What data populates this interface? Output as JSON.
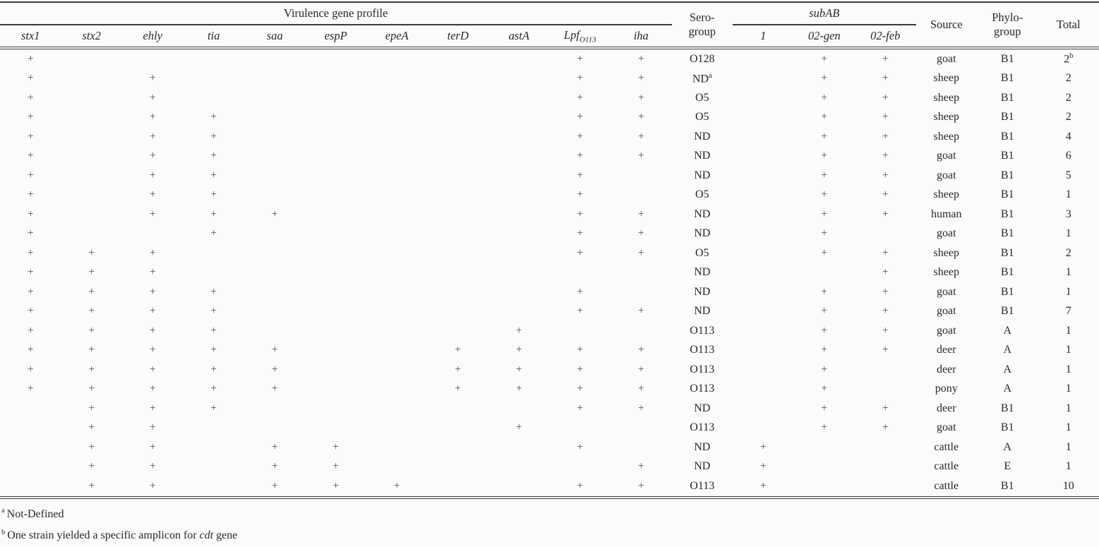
{
  "table": {
    "header": {
      "virulence_group": "Virulence gene profile",
      "serogroup_line1": "Sero-",
      "serogroup_line2": "group",
      "subAB": "subAB",
      "source": "Source",
      "phylo_line1": "Phylo-",
      "phylo_line2": "group",
      "total": "Total",
      "gene_columns": [
        {
          "label": "stx1",
          "sub": ""
        },
        {
          "label": "stx2",
          "sub": ""
        },
        {
          "label": "ehly",
          "sub": ""
        },
        {
          "label": "tia",
          "sub": ""
        },
        {
          "label": "saa",
          "sub": ""
        },
        {
          "label": "espP",
          "sub": ""
        },
        {
          "label": "epeA",
          "sub": ""
        },
        {
          "label": "terD",
          "sub": ""
        },
        {
          "label": "astA",
          "sub": ""
        },
        {
          "label": "Lpf",
          "sub": "O113"
        },
        {
          "label": "iha",
          "sub": ""
        }
      ],
      "subAB_columns": [
        "1",
        "02-gen",
        "02-feb"
      ]
    },
    "rows": [
      {
        "genes": [
          "+",
          "",
          "",
          "",
          "",
          "",
          "",
          "",
          "",
          "+",
          "+"
        ],
        "sero": "O128",
        "sero_sup": "",
        "subAB": [
          "",
          "+",
          "+"
        ],
        "source": "goat",
        "phylo": "B1",
        "total": "2",
        "total_sup": "b"
      },
      {
        "genes": [
          "+",
          "",
          "+",
          "",
          "",
          "",
          "",
          "",
          "",
          "+",
          "+"
        ],
        "sero": "ND",
        "sero_sup": "a",
        "subAB": [
          "",
          "+",
          "+"
        ],
        "source": "sheep",
        "phylo": "B1",
        "total": "2",
        "total_sup": ""
      },
      {
        "genes": [
          "+",
          "",
          "+",
          "",
          "",
          "",
          "",
          "",
          "",
          "+",
          "+"
        ],
        "sero": "O5",
        "sero_sup": "",
        "subAB": [
          "",
          "+",
          "+"
        ],
        "source": "sheep",
        "phylo": "B1",
        "total": "2",
        "total_sup": ""
      },
      {
        "genes": [
          "+",
          "",
          "+",
          "+",
          "",
          "",
          "",
          "",
          "",
          "+",
          "+"
        ],
        "sero": "O5",
        "sero_sup": "",
        "subAB": [
          "",
          "+",
          "+"
        ],
        "source": "sheep",
        "phylo": "B1",
        "total": "2",
        "total_sup": ""
      },
      {
        "genes": [
          "+",
          "",
          "+",
          "+",
          "",
          "",
          "",
          "",
          "",
          "+",
          "+"
        ],
        "sero": "ND",
        "sero_sup": "",
        "subAB": [
          "",
          "+",
          "+"
        ],
        "source": "sheep",
        "phylo": "B1",
        "total": "4",
        "total_sup": ""
      },
      {
        "genes": [
          "+",
          "",
          "+",
          "+",
          "",
          "",
          "",
          "",
          "",
          "+",
          "+"
        ],
        "sero": "ND",
        "sero_sup": "",
        "subAB": [
          "",
          "+",
          "+"
        ],
        "source": "goat",
        "phylo": "B1",
        "total": "6",
        "total_sup": ""
      },
      {
        "genes": [
          "+",
          "",
          "+",
          "+",
          "",
          "",
          "",
          "",
          "",
          "+",
          ""
        ],
        "sero": "ND",
        "sero_sup": "",
        "subAB": [
          "",
          "+",
          "+"
        ],
        "source": "goat",
        "phylo": "B1",
        "total": "5",
        "total_sup": ""
      },
      {
        "genes": [
          "+",
          "",
          "+",
          "+",
          "",
          "",
          "",
          "",
          "",
          "+",
          ""
        ],
        "sero": "O5",
        "sero_sup": "",
        "subAB": [
          "",
          "+",
          "+"
        ],
        "source": "sheep",
        "phylo": "B1",
        "total": "1",
        "total_sup": ""
      },
      {
        "genes": [
          "+",
          "",
          "+",
          "+",
          "+",
          "",
          "",
          "",
          "",
          "+",
          "+"
        ],
        "sero": "ND",
        "sero_sup": "",
        "subAB": [
          "",
          "+",
          "+"
        ],
        "source": "human",
        "phylo": "B1",
        "total": "3",
        "total_sup": ""
      },
      {
        "genes": [
          "+",
          "",
          "",
          "+",
          "",
          "",
          "",
          "",
          "",
          "+",
          "+"
        ],
        "sero": "ND",
        "sero_sup": "",
        "subAB": [
          "",
          "+",
          ""
        ],
        "source": "goat",
        "phylo": "B1",
        "total": "1",
        "total_sup": ""
      },
      {
        "genes": [
          "+",
          "+",
          "+",
          "",
          "",
          "",
          "",
          "",
          "",
          "+",
          "+"
        ],
        "sero": "O5",
        "sero_sup": "",
        "subAB": [
          "",
          "+",
          "+"
        ],
        "source": "sheep",
        "phylo": "B1",
        "total": "2",
        "total_sup": ""
      },
      {
        "genes": [
          "+",
          "+",
          "+",
          "",
          "",
          "",
          "",
          "",
          "",
          "",
          ""
        ],
        "sero": "ND",
        "sero_sup": "",
        "subAB": [
          "",
          "",
          "+"
        ],
        "source": "sheep",
        "phylo": "B1",
        "total": "1",
        "total_sup": ""
      },
      {
        "genes": [
          "+",
          "+",
          "+",
          "+",
          "",
          "",
          "",
          "",
          "",
          "+",
          ""
        ],
        "sero": "ND",
        "sero_sup": "",
        "subAB": [
          "",
          "+",
          "+"
        ],
        "source": "goat",
        "phylo": "B1",
        "total": "1",
        "total_sup": ""
      },
      {
        "genes": [
          "+",
          "+",
          "+",
          "+",
          "",
          "",
          "",
          "",
          "",
          "+",
          "+"
        ],
        "sero": "ND",
        "sero_sup": "",
        "subAB": [
          "",
          "+",
          "+"
        ],
        "source": "goat",
        "phylo": "B1",
        "total": "7",
        "total_sup": ""
      },
      {
        "genes": [
          "+",
          "+",
          "+",
          "+",
          "",
          "",
          "",
          "",
          "+",
          "",
          ""
        ],
        "sero": "O113",
        "sero_sup": "",
        "subAB": [
          "",
          "+",
          "+"
        ],
        "source": "goat",
        "phylo": "A",
        "total": "1",
        "total_sup": ""
      },
      {
        "genes": [
          "+",
          "+",
          "+",
          "+",
          "+",
          "",
          "",
          "+",
          "+",
          "+",
          "+"
        ],
        "sero": "O113",
        "sero_sup": "",
        "subAB": [
          "",
          "+",
          "+"
        ],
        "source": "deer",
        "phylo": "A",
        "total": "1",
        "total_sup": ""
      },
      {
        "genes": [
          "+",
          "+",
          "+",
          "+",
          "+",
          "",
          "",
          "+",
          "+",
          "+",
          "+"
        ],
        "sero": "O113",
        "sero_sup": "",
        "subAB": [
          "",
          "+",
          ""
        ],
        "source": "deer",
        "phylo": "A",
        "total": "1",
        "total_sup": ""
      },
      {
        "genes": [
          "+",
          "+",
          "+",
          "+",
          "+",
          "",
          "",
          "+",
          "+",
          "+",
          "+"
        ],
        "sero": "O113",
        "sero_sup": "",
        "subAB": [
          "",
          "+",
          ""
        ],
        "source": "pony",
        "phylo": "A",
        "total": "1",
        "total_sup": ""
      },
      {
        "genes": [
          "",
          "+",
          "+",
          "+",
          "",
          "",
          "",
          "",
          "",
          "+",
          "+"
        ],
        "sero": "ND",
        "sero_sup": "",
        "subAB": [
          "",
          "+",
          "+"
        ],
        "source": "deer",
        "phylo": "B1",
        "total": "1",
        "total_sup": ""
      },
      {
        "genes": [
          "",
          "+",
          "+",
          "",
          "",
          "",
          "",
          "",
          "+",
          "",
          ""
        ],
        "sero": "O113",
        "sero_sup": "",
        "subAB": [
          "",
          "+",
          "+"
        ],
        "source": "goat",
        "phylo": "B1",
        "total": "1",
        "total_sup": ""
      },
      {
        "genes": [
          "",
          "+",
          "+",
          "",
          "+",
          "+",
          "",
          "",
          "",
          "+",
          ""
        ],
        "sero": "ND",
        "sero_sup": "",
        "subAB": [
          "+",
          "",
          ""
        ],
        "source": "cattle",
        "phylo": "A",
        "total": "1",
        "total_sup": ""
      },
      {
        "genes": [
          "",
          "+",
          "+",
          "",
          "+",
          "+",
          "",
          "",
          "",
          "",
          "+"
        ],
        "sero": "ND",
        "sero_sup": "",
        "subAB": [
          "+",
          "",
          ""
        ],
        "source": "cattle",
        "phylo": "E",
        "total": "1",
        "total_sup": ""
      },
      {
        "genes": [
          "",
          "+",
          "+",
          "",
          "+",
          "+",
          "+",
          "",
          "",
          "+",
          "+"
        ],
        "sero": "O113",
        "sero_sup": "",
        "subAB": [
          "+",
          "",
          ""
        ],
        "source": "cattle",
        "phylo": "B1",
        "total": "10",
        "total_sup": ""
      }
    ]
  },
  "footnotes": [
    {
      "sup": "a",
      "parts": [
        {
          "text": "Not-Defined",
          "italic": false
        }
      ]
    },
    {
      "sup": "b",
      "parts": [
        {
          "text": "One strain yielded a specific amplicon for ",
          "italic": false
        },
        {
          "text": "cdt",
          "italic": true
        },
        {
          "text": " gene",
          "italic": false
        }
      ]
    }
  ]
}
